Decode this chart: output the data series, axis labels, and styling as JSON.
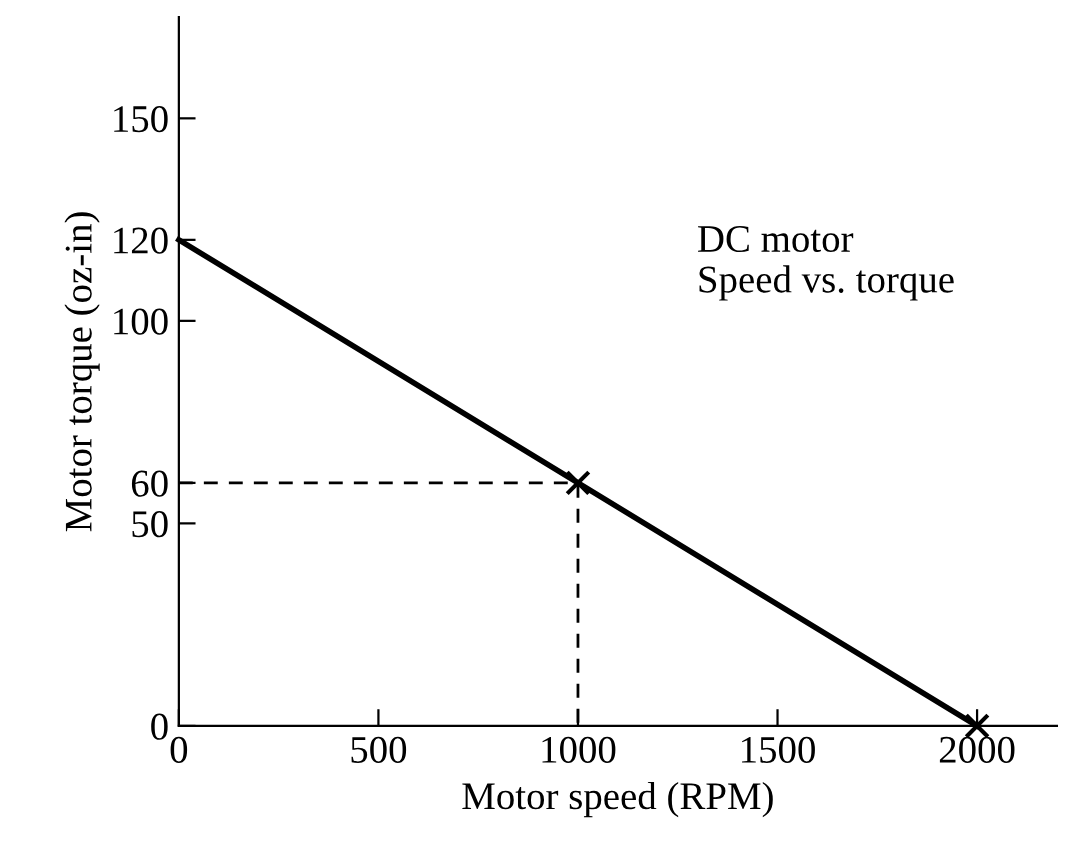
{
  "chart_data": {
    "type": "line",
    "xlabel": "Motor speed (RPM)",
    "ylabel": "Motor torque (oz-in)",
    "xlim": [
      0,
      2200
    ],
    "xticks": [
      0,
      500,
      1000,
      1500,
      2000
    ],
    "ylim": [
      0,
      175
    ],
    "yticks": [
      0,
      50,
      60,
      100,
      120,
      150
    ],
    "grid": false,
    "legend": false,
    "series": [
      {
        "color": "#000000",
        "x": [
          0,
          2000
        ],
        "values": [
          120,
          0
        ],
        "line_style": "solid",
        "marker": "none"
      },
      {
        "type": "line",
        "color": "#000000",
        "x": [
          0,
          1000,
          1000
        ],
        "values": [
          60,
          60,
          0
        ],
        "line_style": "dashed",
        "marker": "none"
      },
      {
        "type": "scatter",
        "color": "#000000",
        "x": [
          1000,
          2000
        ],
        "values": [
          60,
          0
        ],
        "marker": "cross"
      }
    ],
    "annotations": [
      "DC motor\nSpeed vs. torque"
    ]
  }
}
